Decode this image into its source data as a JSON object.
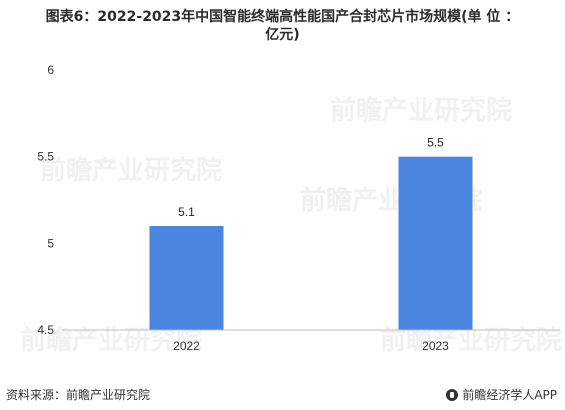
{
  "title": {
    "line1": "图表6：2022-2023年中国智能终端高性能国产合封芯片市场规模(单 位 ：",
    "line2": "亿元)"
  },
  "footer": {
    "source": "资料来源：前瞻产业研究院",
    "brand": "前瞻经济学人APP",
    "brand_icon": "qianzhan-logo-icon"
  },
  "watermark": {
    "text": "前瞻产业研究院"
  },
  "colors": {
    "bar": "#4a86e0",
    "axis": "#bfbfbf"
  },
  "chart_data": {
    "type": "bar",
    "title": "图表6：2022-2023年中国智能终端高性能国产合封芯片市场规模(单 位 ：亿元)",
    "categories": [
      "2022",
      "2023"
    ],
    "values": [
      5.1,
      5.5
    ],
    "value_labels": [
      "5.1",
      "5.5"
    ],
    "ylim": [
      4.5,
      6
    ],
    "yticks": [
      4.5,
      5,
      5.5,
      6
    ],
    "ytick_labels": [
      "4.5",
      "5",
      "5.5",
      "6"
    ],
    "xlabel": "",
    "ylabel": "",
    "grid": false,
    "legend": "none"
  }
}
